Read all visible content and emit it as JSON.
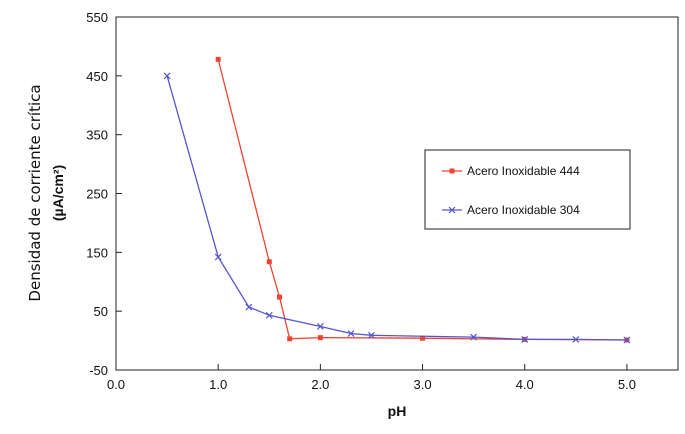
{
  "chart_data": {
    "type": "line",
    "xlabel": "pH",
    "ylabel_line1": "Densidad de corriente crítica",
    "ylabel_line2": "(µA/cm²)",
    "xlim": [
      0,
      5.5
    ],
    "ylim": [
      -50,
      550
    ],
    "x_ticks": [
      "0.0",
      "1.0",
      "2.0",
      "3.0",
      "4.0",
      "5.0"
    ],
    "y_ticks": [
      "550",
      "450",
      "350",
      "250",
      "150",
      "50",
      "-50"
    ],
    "grid": false,
    "legend_position": "right",
    "series": [
      {
        "name": "Acero Inoxidable 444",
        "color": "#ee4433",
        "marker": "square",
        "x": [
          1.0,
          1.5,
          1.6,
          1.7,
          2.0,
          3.0,
          4.0,
          5.0
        ],
        "y": [
          478,
          134,
          74,
          3,
          5,
          4,
          2,
          1
        ]
      },
      {
        "name": "Acero Inoxidable 304",
        "color": "#5555cc",
        "marker": "x",
        "x": [
          0.5,
          1.0,
          1.3,
          1.5,
          2.0,
          2.3,
          2.5,
          3.5,
          4.0,
          4.5,
          5.0
        ],
        "y": [
          450,
          142,
          57,
          43,
          24,
          12,
          9,
          6,
          2,
          2,
          1
        ]
      }
    ]
  }
}
